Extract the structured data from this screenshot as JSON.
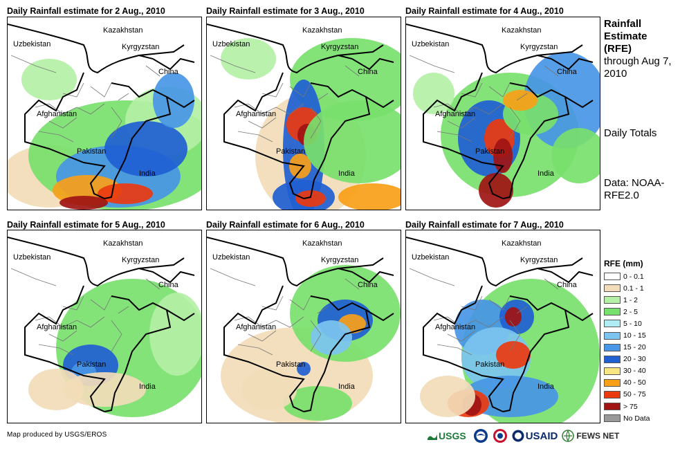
{
  "panels": [
    {
      "title": "Daily Rainfall estimate for 2 Aug., 2010"
    },
    {
      "title": "Daily Rainfall estimate for 3 Aug., 2010"
    },
    {
      "title": "Daily Rainfall estimate for 4 Aug., 2010"
    },
    {
      "title": "Daily Rainfall estimate for 5 Aug., 2010"
    },
    {
      "title": "Daily Rainfall estimate for 6 Aug., 2010"
    },
    {
      "title": "Daily Rainfall estimate for 7 Aug., 2010"
    }
  ],
  "country_labels": {
    "kazakhstan": "Kazakhstan",
    "uzbekistan": "Uzbekistan",
    "kyrgyzstan": "Kyrgyzstan",
    "china": "China",
    "afghanistan": "Afghanistan",
    "pakistan": "Pakistan",
    "india": "India"
  },
  "side": {
    "title": "Rainfall Estimate (RFE)",
    "through": "through Aug 7, 2010",
    "daily": "Daily Totals",
    "data": "Data: NOAA-RFE2.0"
  },
  "legend": {
    "title": "RFE (mm)",
    "items": [
      {
        "label": "0 - 0.1",
        "color": "#ffffff"
      },
      {
        "label": "0.1 - 1",
        "color": "#f2dcb9"
      },
      {
        "label": "1 - 2",
        "color": "#b4f0a6"
      },
      {
        "label": "2 - 5",
        "color": "#78e06c"
      },
      {
        "label": "5 - 10",
        "color": "#b0ecf4"
      },
      {
        "label": "10 - 15",
        "color": "#7cc4f0"
      },
      {
        "label": "15 - 20",
        "color": "#4896e6"
      },
      {
        "label": "20 - 30",
        "color": "#2060d2"
      },
      {
        "label": "30 - 40",
        "color": "#f8e680"
      },
      {
        "label": "40 - 50",
        "color": "#f8a018"
      },
      {
        "label": "50 - 75",
        "color": "#ea3a10"
      },
      {
        "label": "> 75",
        "color": "#a01414"
      },
      {
        "label": "No Data",
        "color": "#999999"
      }
    ]
  },
  "footer": {
    "credit": "Map produced by USGS/EROS",
    "logos": [
      "USGS",
      "USAID",
      "FEWS NET"
    ]
  }
}
